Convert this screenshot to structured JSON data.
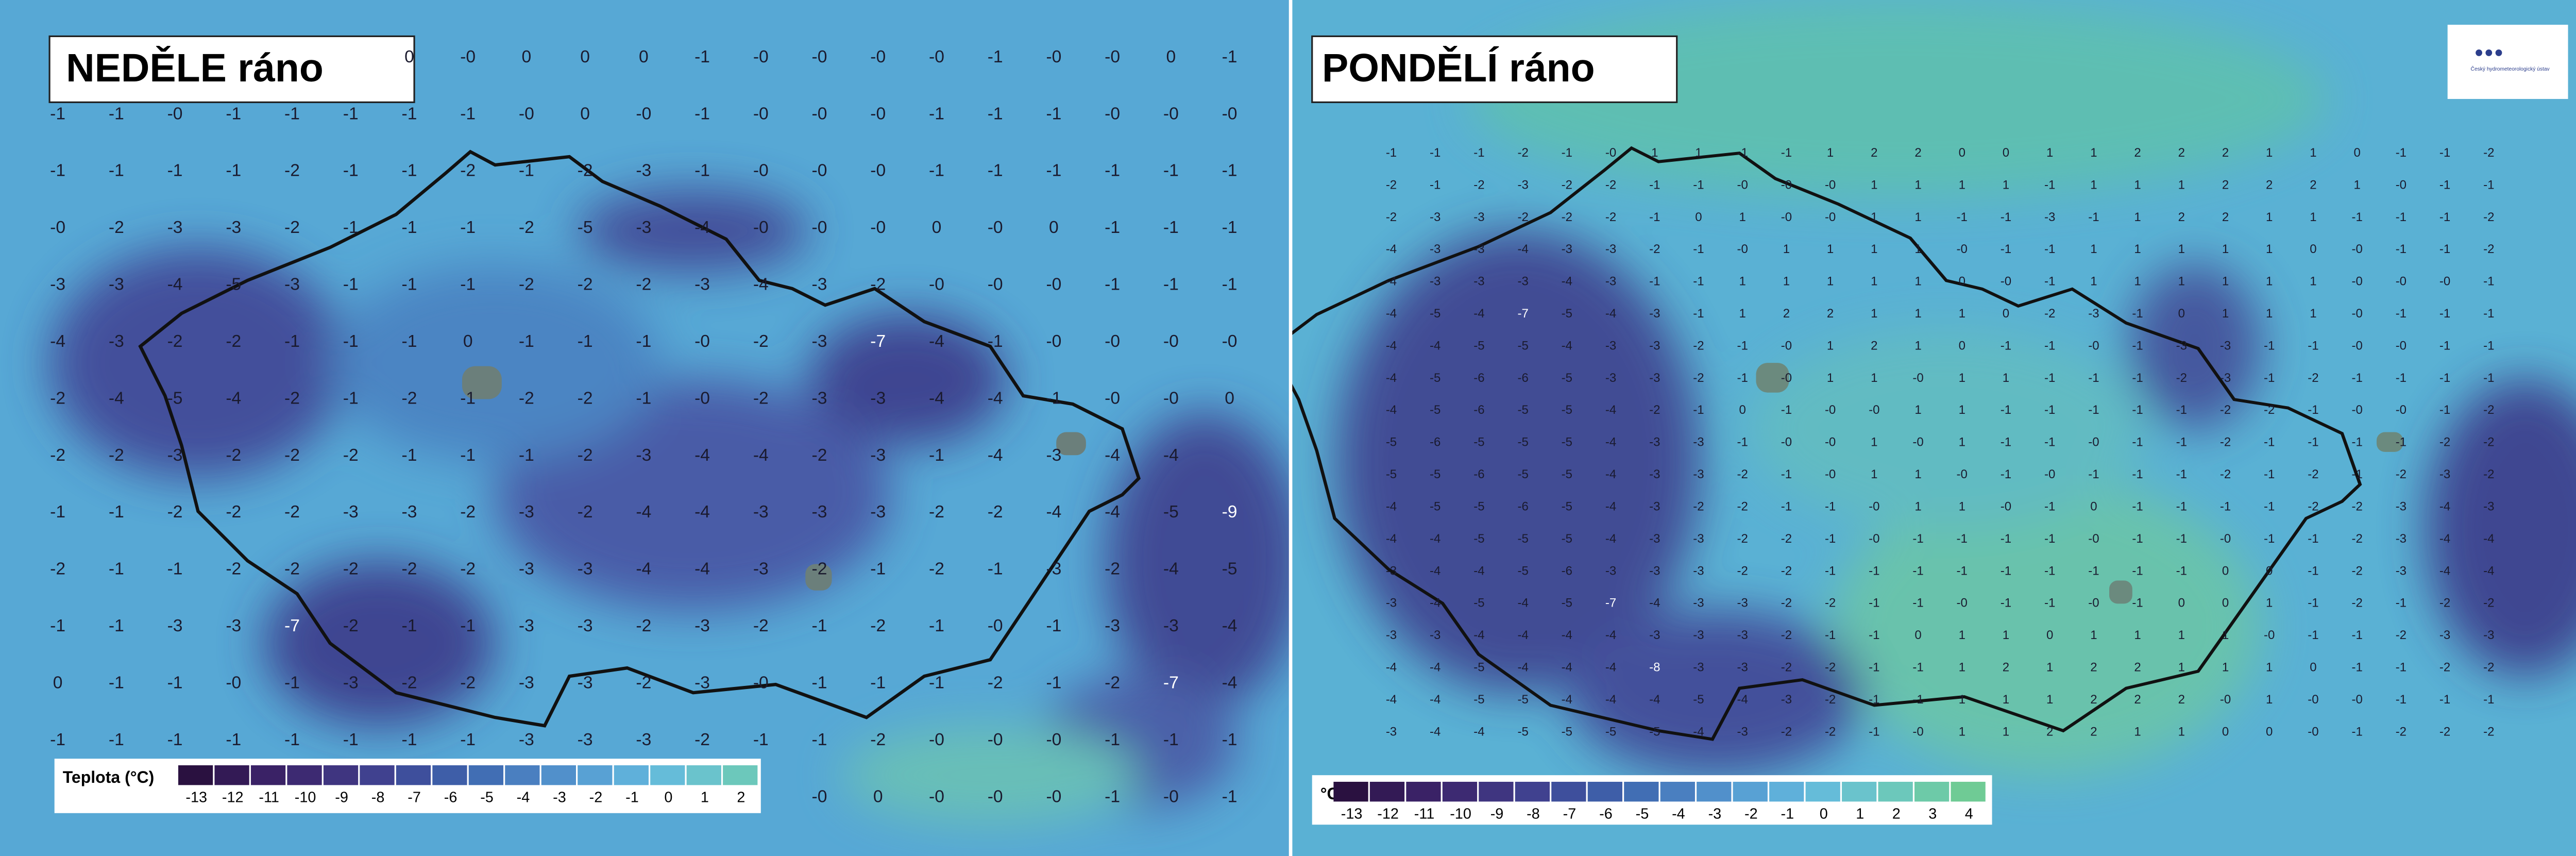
{
  "left_panel": {
    "title": "NEDĚLE ráno",
    "grid": [
      [
        null,
        null,
        null,
        null,
        null,
        null,
        "0",
        "-0",
        "0",
        "0",
        "0",
        "-1",
        "-0",
        "-0",
        "-0",
        "-0",
        "-1",
        "-0",
        "-0",
        "0",
        "-1"
      ],
      [
        "-1",
        "-1",
        "-0",
        "-1",
        "-1",
        "-1",
        "-1",
        "-1",
        "-0",
        "0",
        "-0",
        "-1",
        "-0",
        "-0",
        "-0",
        "-1",
        "-1",
        "-1",
        "-0",
        "-0",
        "-0"
      ],
      [
        "-1",
        "-1",
        "-1",
        "-1",
        "-2",
        "-1",
        "-1",
        "-2",
        "-1",
        "-2",
        "-3",
        "-1",
        "-0",
        "-0",
        "-0",
        "-1",
        "-1",
        "-1",
        "-1",
        "-1",
        "-1"
      ],
      [
        "-0",
        "-2",
        "-3",
        "-3",
        "-2",
        "-1",
        "-1",
        "-1",
        "-2",
        "-5",
        "-3",
        "-4",
        "-0",
        "-0",
        "-0",
        "0",
        "-0",
        "0",
        "-1",
        "-1",
        "-1"
      ],
      [
        "-3",
        "-3",
        "-4",
        "-5",
        "-3",
        "-1",
        "-1",
        "-1",
        "-2",
        "-2",
        "-2",
        "-3",
        "-4",
        "-3",
        "-2",
        "-0",
        "-0",
        "-0",
        "-1",
        "-1",
        "-1"
      ],
      [
        "-4",
        "-3",
        "-2",
        "-2",
        "-1",
        "-1",
        "-1",
        "0",
        "-1",
        "-1",
        "-1",
        "-0",
        "-2",
        "-3",
        "-7",
        "-4",
        "-1",
        "-0",
        "-0",
        "-0",
        "-0"
      ],
      [
        "-2",
        "-4",
        "-5",
        "-4",
        "-2",
        "-1",
        "-2",
        "-1",
        "-2",
        "-2",
        "-1",
        "-0",
        "-2",
        "-3",
        "-3",
        "-4",
        "-4",
        "-1",
        "-0",
        "-0",
        "0"
      ],
      [
        "-2",
        "-2",
        "-3",
        "-2",
        "-2",
        "-2",
        "-1",
        "-1",
        "-1",
        "-2",
        "-3",
        "-4",
        "-4",
        "-2",
        "-3",
        "-1",
        "-4",
        "-3",
        "-4",
        "-4",
        null
      ],
      [
        "-1",
        "-1",
        "-2",
        "-2",
        "-2",
        "-3",
        "-3",
        "-2",
        "-3",
        "-2",
        "-4",
        "-4",
        "-3",
        "-3",
        "-3",
        "-2",
        "-2",
        "-4",
        "-4",
        "-5",
        "-9"
      ],
      [
        "-2",
        "-1",
        "-1",
        "-2",
        "-2",
        "-2",
        "-2",
        "-2",
        "-3",
        "-3",
        "-4",
        "-4",
        "-3",
        "-2",
        "-1",
        "-2",
        "-1",
        "-3",
        "-2",
        "-4",
        "-5"
      ],
      [
        "-1",
        "-1",
        "-3",
        "-3",
        "-7",
        "-2",
        "-1",
        "-1",
        "-3",
        "-3",
        "-2",
        "-3",
        "-2",
        "-1",
        "-2",
        "-1",
        "-0",
        "-1",
        "-3",
        "-3",
        "-4"
      ],
      [
        "0",
        "-1",
        "-1",
        "-0",
        "-1",
        "-3",
        "-2",
        "-2",
        "-3",
        "-3",
        "-2",
        "-3",
        "-0",
        "-1",
        "-1",
        "-1",
        "-2",
        "-1",
        "-2",
        "-7",
        "-4"
      ],
      [
        "-1",
        "-1",
        "-1",
        "-1",
        "-1",
        "-1",
        "-1",
        "-1",
        "-3",
        "-3",
        "-3",
        "-2",
        "-1",
        "-1",
        "-2",
        "-0",
        "-0",
        "-0",
        "-1",
        "-1",
        "-1"
      ],
      [
        null,
        null,
        null,
        null,
        null,
        null,
        null,
        null,
        null,
        null,
        null,
        null,
        null,
        "-0",
        "0",
        "-0",
        "-0",
        "-0",
        "-1",
        "-0",
        "-1"
      ]
    ],
    "legend": {
      "label": "Teplota (°C)",
      "ticks": [
        "-13",
        "-12",
        "-11",
        "-10",
        "-9",
        "-8",
        "-7",
        "-6",
        "-5",
        "-4",
        "-3",
        "-2",
        "-1",
        "0",
        "1",
        "2"
      ]
    }
  },
  "right_panel": {
    "title": "PONDĚLÍ ráno",
    "logo": "Český hydrometeorologický ústav",
    "grid": [
      [
        "-1",
        "-1",
        "-1",
        "-2",
        "-1",
        "-0",
        "1",
        "1",
        "-1",
        "-1",
        "1",
        "2",
        "2",
        "0",
        "0",
        "1",
        "1",
        "2",
        "2",
        "2",
        "1",
        "1",
        "0",
        "-1",
        "-1",
        "-2"
      ],
      [
        "-2",
        "-1",
        "-2",
        "-3",
        "-2",
        "-2",
        "-1",
        "-1",
        "-0",
        "-0",
        "-0",
        "1",
        "1",
        "1",
        "1",
        "-1",
        "1",
        "1",
        "1",
        "2",
        "2",
        "2",
        "1",
        "-0",
        "-1",
        "-1"
      ],
      [
        "-2",
        "-3",
        "-3",
        "-2",
        "-2",
        "-2",
        "-1",
        "0",
        "1",
        "-0",
        "-0",
        "1",
        "1",
        "-1",
        "-1",
        "-3",
        "-1",
        "1",
        "2",
        "2",
        "1",
        "1",
        "-1",
        "-1",
        "-1",
        "-2"
      ],
      [
        "-4",
        "-3",
        "-3",
        "-4",
        "-3",
        "-3",
        "-2",
        "-1",
        "-0",
        "1",
        "1",
        "1",
        "1",
        "-0",
        "-1",
        "-1",
        "1",
        "1",
        "1",
        "1",
        "1",
        "0",
        "-0",
        "-1",
        "-1",
        "-2"
      ],
      [
        "-4",
        "-3",
        "-3",
        "-3",
        "-4",
        "-3",
        "-1",
        "-1",
        "1",
        "1",
        "1",
        "1",
        "1",
        "0",
        "-0",
        "-1",
        "1",
        "1",
        "1",
        "1",
        "1",
        "1",
        "-0",
        "-0",
        "-0",
        "-1"
      ],
      [
        "-4",
        "-5",
        "-4",
        "-7",
        "-5",
        "-4",
        "-3",
        "-1",
        "1",
        "2",
        "2",
        "1",
        "1",
        "1",
        "0",
        "-2",
        "-3",
        "-1",
        "0",
        "1",
        "1",
        "1",
        "-0",
        "-1",
        "-1",
        "-1"
      ],
      [
        "-4",
        "-4",
        "-5",
        "-5",
        "-4",
        "-3",
        "-3",
        "-2",
        "-1",
        "-0",
        "1",
        "2",
        "1",
        "0",
        "-1",
        "-1",
        "-0",
        "-1",
        "-3",
        "-3",
        "-1",
        "-1",
        "-0",
        "-0",
        "-1",
        "-1"
      ],
      [
        "-4",
        "-5",
        "-6",
        "-6",
        "-5",
        "-3",
        "-3",
        "-2",
        "-1",
        "-0",
        "1",
        "1",
        "-0",
        "1",
        "1",
        "-1",
        "-1",
        "-1",
        "-2",
        "-3",
        "-1",
        "-2",
        "-1",
        "-1",
        "-1",
        "-1"
      ],
      [
        "-4",
        "-5",
        "-6",
        "-5",
        "-5",
        "-4",
        "-2",
        "-1",
        "0",
        "-1",
        "-0",
        "-0",
        "1",
        "1",
        "-1",
        "-1",
        "-1",
        "-1",
        "-1",
        "-2",
        "-2",
        "-1",
        "-0",
        "-0",
        "-1",
        "-2"
      ],
      [
        "-5",
        "-6",
        "-5",
        "-5",
        "-5",
        "-4",
        "-3",
        "-3",
        "-1",
        "-0",
        "-0",
        "1",
        "-0",
        "1",
        "-1",
        "-1",
        "-0",
        "-1",
        "-1",
        "-2",
        "-1",
        "-1",
        "-1",
        "-1",
        "-2",
        "-2"
      ],
      [
        "-5",
        "-5",
        "-6",
        "-5",
        "-5",
        "-4",
        "-3",
        "-3",
        "-2",
        "-1",
        "-0",
        "1",
        "1",
        "-0",
        "-1",
        "-0",
        "-1",
        "-1",
        "-1",
        "-2",
        "-1",
        "-2",
        "-1",
        "-2",
        "-3",
        "-2"
      ],
      [
        "-4",
        "-5",
        "-5",
        "-6",
        "-5",
        "-4",
        "-3",
        "-2",
        "-2",
        "-1",
        "-1",
        "-0",
        "1",
        "1",
        "-0",
        "-1",
        "0",
        "-1",
        "-1",
        "-1",
        "-1",
        "-2",
        "-2",
        "-3",
        "-4",
        "-3"
      ],
      [
        "-4",
        "-4",
        "-5",
        "-5",
        "-5",
        "-4",
        "-3",
        "-3",
        "-2",
        "-2",
        "-1",
        "-0",
        "-1",
        "-1",
        "-1",
        "-1",
        "-0",
        "-1",
        "-1",
        "-0",
        "-1",
        "-1",
        "-2",
        "-3",
        "-4",
        "-4"
      ],
      [
        "-3",
        "-4",
        "-4",
        "-5",
        "-6",
        "-3",
        "-3",
        "-3",
        "-2",
        "-2",
        "-1",
        "-1",
        "-1",
        "-1",
        "-1",
        "-1",
        "-1",
        "-1",
        "-1",
        "0",
        "0",
        "-1",
        "-2",
        "-3",
        "-4",
        "-4"
      ],
      [
        "-3",
        "-4",
        "-5",
        "-4",
        "-5",
        "-7",
        "-4",
        "-3",
        "-3",
        "-2",
        "-2",
        "-1",
        "-1",
        "-0",
        "-1",
        "-1",
        "-0",
        "-1",
        "0",
        "0",
        "1",
        "-1",
        "-2",
        "-1",
        "-2",
        "-2"
      ],
      [
        "-3",
        "-3",
        "-4",
        "-4",
        "-4",
        "-4",
        "-3",
        "-3",
        "-3",
        "-2",
        "-1",
        "-1",
        "0",
        "1",
        "1",
        "0",
        "1",
        "1",
        "1",
        "1",
        "-0",
        "-1",
        "-1",
        "-2",
        "-3",
        "-3"
      ],
      [
        "-4",
        "-4",
        "-5",
        "-4",
        "-4",
        "-4",
        "-8",
        "-3",
        "-3",
        "-2",
        "-2",
        "-1",
        "-1",
        "1",
        "2",
        "1",
        "2",
        "2",
        "1",
        "1",
        "1",
        "0",
        "-1",
        "-1",
        "-2",
        "-2"
      ],
      [
        "-4",
        "-4",
        "-5",
        "-5",
        "-4",
        "-4",
        "-4",
        "-5",
        "-4",
        "-3",
        "-2",
        "-1",
        "-1",
        "1",
        "1",
        "1",
        "2",
        "2",
        "2",
        "-0",
        "1",
        "-0",
        "-0",
        "-1",
        "-1",
        "-1"
      ],
      [
        "-3",
        "-4",
        "-4",
        "-5",
        "-5",
        "-5",
        "-5",
        "-4",
        "-3",
        "-2",
        "-2",
        "-1",
        "-0",
        "1",
        "1",
        "2",
        "2",
        "1",
        "1",
        "0",
        "0",
        "-0",
        "-1",
        "-2",
        "-2",
        "-2"
      ]
    ],
    "legend": {
      "label": "°C",
      "ticks": [
        "-13",
        "-12",
        "-11",
        "-10",
        "-9",
        "-8",
        "-7",
        "-6",
        "-5",
        "-4",
        "-3",
        "-2",
        "-1",
        "0",
        "1",
        "2",
        "3",
        "4"
      ]
    }
  }
}
